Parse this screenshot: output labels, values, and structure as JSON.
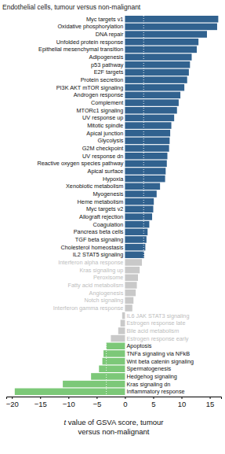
{
  "chart_data": {
    "type": "bar",
    "orientation": "horizontal",
    "title": "Endothelial cells, tumour versus non-malignant",
    "xlabel": [
      "t value of GSVA score, tumour",
      "versus non-malignant"
    ],
    "categories": [
      "Myc targets v1",
      "Oxidative phosphorylation",
      "DNA repair",
      "Unfolded protein response",
      "Epithelial mesenchymal transition",
      "Adipogenesis",
      "p53 pathway",
      "E2F targets",
      "Protein secretion",
      "PI3K AKT mTOR signaling",
      "Androgen response",
      "Complement",
      "MTORc1 signaling",
      "UV response up",
      "Mitotic spindle",
      "Apical junction",
      "Glycolysis",
      "G2M checkpoint",
      "UV response dn",
      "Reactive oxygen species pathway",
      "Apical surface",
      "Hypoxia",
      "Xenobiotic metabolism",
      "Myogenesis",
      "Heme metabolism",
      "Myc targets v2",
      "Allograft rejection",
      "Coagulation",
      "Pancreas beta cells",
      "TGF beta signaling",
      "Cholesterol homeostasis",
      "IL2 STAT5 signaling",
      "Interferon alpha response",
      "Kras signaling up",
      "Peroxisome",
      "Fatty acid metabolism",
      "Angiogenesis",
      "Notch signaling",
      "Interferon gamma response",
      "IL6 JAK STAT3 signaling",
      "Estrogen response late",
      "Bile acid metabolism",
      "Estrogen response early",
      "Apoptosis",
      "TNFa signaling via NFkB",
      "Wnt beta catenin signaling",
      "Spermatogenesis",
      "Hedgehog signaling",
      "Kras signaling dn",
      "Inflammatory response"
    ],
    "values": [
      16.5,
      16.3,
      14.5,
      13.0,
      12.7,
      11.8,
      11.5,
      11.3,
      11.0,
      10.5,
      9.8,
      9.5,
      9.2,
      8.7,
      8.2,
      8.0,
      7.9,
      7.8,
      7.5,
      7.4,
      7.2,
      7.1,
      6.2,
      5.6,
      5.1,
      5.0,
      4.8,
      4.3,
      4.0,
      3.8,
      3.6,
      3.4,
      3.0,
      2.6,
      2.3,
      2.1,
      1.9,
      1.5,
      1.3,
      -0.5,
      -0.8,
      -1.2,
      -2.5,
      -3.3,
      -3.8,
      -4.0,
      -4.6,
      -6.0,
      -11.0,
      -19.5
    ],
    "colors": [
      "#31628f",
      "#31628f",
      "#31628f",
      "#31628f",
      "#31628f",
      "#31628f",
      "#31628f",
      "#31628f",
      "#31628f",
      "#31628f",
      "#31628f",
      "#31628f",
      "#31628f",
      "#31628f",
      "#31628f",
      "#31628f",
      "#31628f",
      "#31628f",
      "#31628f",
      "#31628f",
      "#31628f",
      "#31628f",
      "#31628f",
      "#31628f",
      "#31628f",
      "#31628f",
      "#31628f",
      "#31628f",
      "#31628f",
      "#31628f",
      "#31628f",
      "#31628f",
      "#c9c9c9",
      "#c9c9c9",
      "#c9c9c9",
      "#c9c9c9",
      "#c9c9c9",
      "#c9c9c9",
      "#c9c9c9",
      "#c9c9c9",
      "#c9c9c9",
      "#c9c9c9",
      "#c9c9c9",
      "#7cc878",
      "#7cc878",
      "#7cc878",
      "#7cc878",
      "#7cc878",
      "#7cc878",
      "#7cc878"
    ],
    "reference_lines": [
      -3.3,
      3.3
    ],
    "xlim": [
      -21,
      17
    ],
    "xticks": [
      -20,
      -15,
      -10,
      -5,
      0,
      5,
      10,
      15
    ],
    "grid": false
  }
}
